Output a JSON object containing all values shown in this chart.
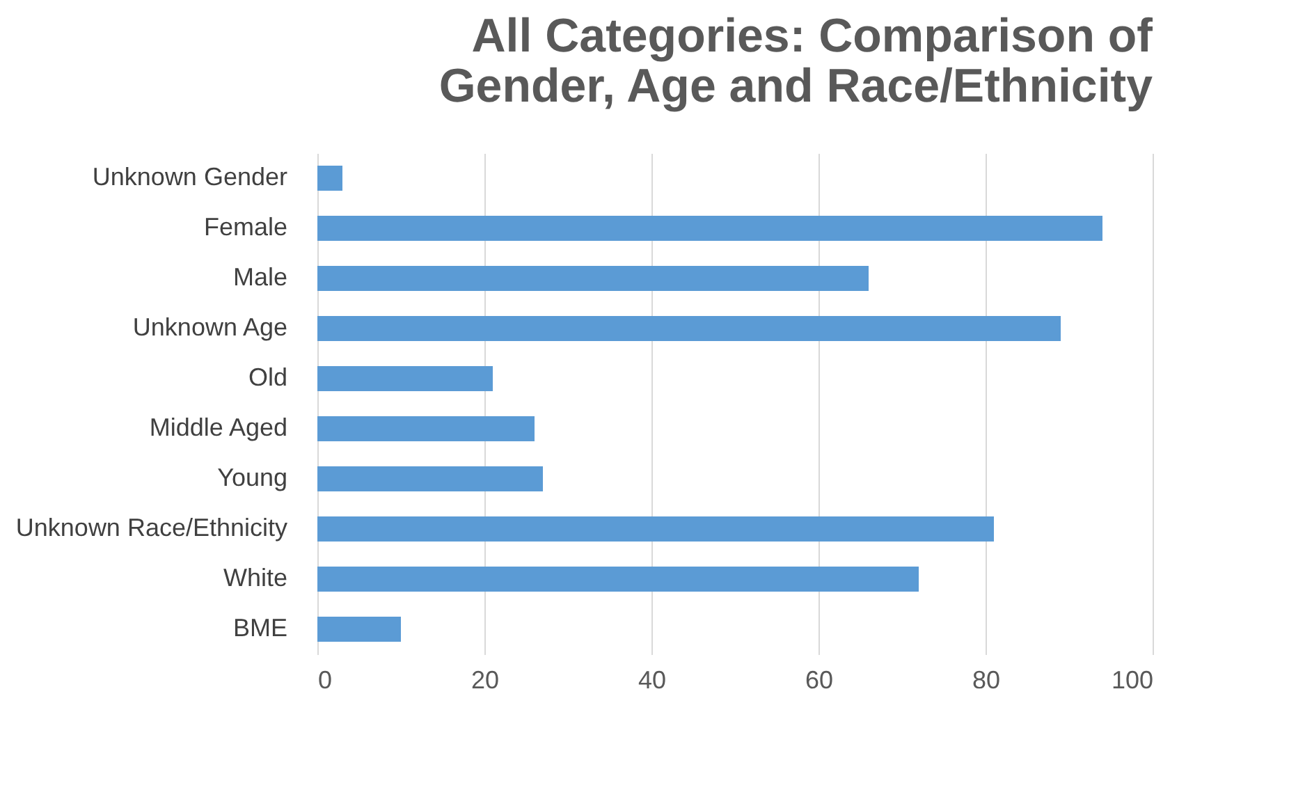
{
  "chart_data": {
    "type": "bar",
    "orientation": "horizontal",
    "title": "All Categories: Comparison of Gender, Age and Race/Ethnicity",
    "categories": [
      "Unknown Gender",
      "Female",
      "Male",
      "Unknown Age",
      "Old",
      "Middle Aged",
      "Young",
      "Unknown Race/Ethnicity",
      "White",
      "BME"
    ],
    "values": [
      3,
      94,
      66,
      89,
      21,
      26,
      27,
      81,
      72,
      10
    ],
    "color": "#5b9bd5",
    "xlim": [
      0,
      100
    ],
    "xticks": [
      0,
      20,
      40,
      60,
      80,
      100
    ],
    "grid": "x"
  }
}
